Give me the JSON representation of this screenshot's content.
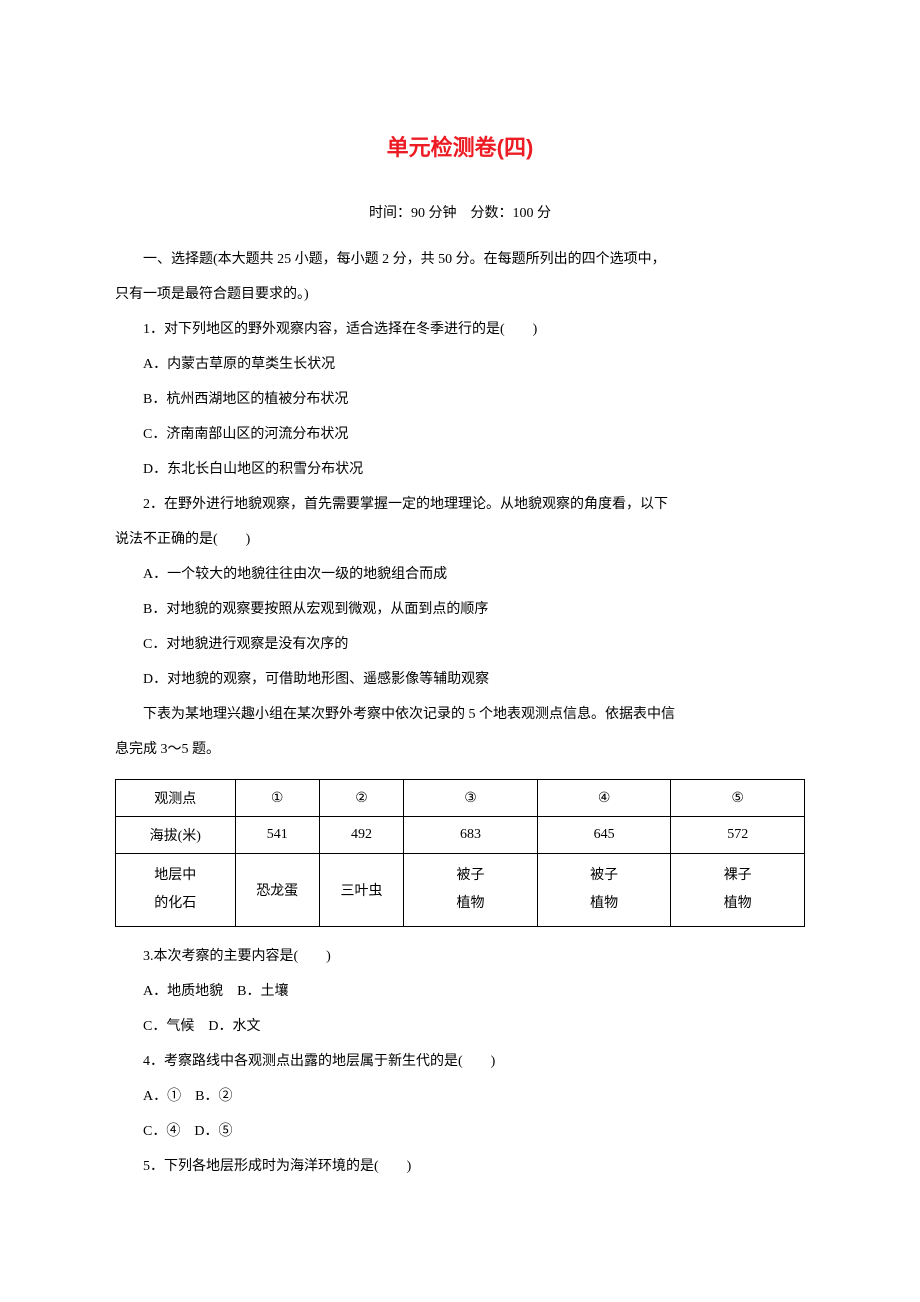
{
  "title": "单元检测卷(四)",
  "subtitle": "时间：90 分钟　分数：100 分",
  "section1": "一、选择题(本大题共 25 小题，每小题 2 分，共 50 分。在每题所列出的四个选项中，",
  "section1_cont": "只有一项是最符合题目要求的。)",
  "q1": "1．对下列地区的野外观察内容，适合选择在冬季进行的是(　　)",
  "q1a": "A．内蒙古草原的草类生长状况",
  "q1b": "B．杭州西湖地区的植被分布状况",
  "q1c": "C．济南南部山区的河流分布状况",
  "q1d": "D．东北长白山地区的积雪分布状况",
  "q2": "2．在野外进行地貌观察，首先需要掌握一定的地理理论。从地貌观察的角度看，以下",
  "q2_cont": "说法不正确的是(　　)",
  "q2a": "A．一个较大的地貌往往由次一级的地貌组合而成",
  "q2b": "B．对地貌的观察要按照从宏观到微观，从面到点的顺序",
  "q2c": "C．对地貌进行观察是没有次序的",
  "q2d": "D．对地貌的观察，可借助地形图、遥感影像等辅助观察",
  "table_intro": "下表为某地理兴趣小组在某次野外考察中依次记录的 5 个地表观测点信息。依据表中信",
  "table_intro_cont": "息完成 3～5 题。",
  "table": {
    "header": {
      "c1": "观测点",
      "c2": "①",
      "c3": "②",
      "c4": "③",
      "c5": "④",
      "c6": "⑤"
    },
    "row_elevation": {
      "label": "海拔(米)",
      "v1": "541",
      "v2": "492",
      "v3": "683",
      "v4": "645",
      "v5": "572"
    },
    "row_fossil": {
      "label1": "地层中",
      "label2": "的化石",
      "v1": "恐龙蛋",
      "v2": "三叶虫",
      "v3a": "被子",
      "v3b": "植物",
      "v4a": "被子",
      "v4b": "植物",
      "v5a": "裸子",
      "v5b": "植物"
    }
  },
  "q3": "3.本次考察的主要内容是(　　)",
  "q3a": "A．地质地貌　B．土壤",
  "q3b": "C．气候　D．水文",
  "q4": "4．考察路线中各观测点出露的地层属于新生代的是(　　)",
  "q4a": "A．①　B．②",
  "q4b": "C．④　D．⑤",
  "q5": "5．下列各地层形成时为海洋环境的是(　　)"
}
